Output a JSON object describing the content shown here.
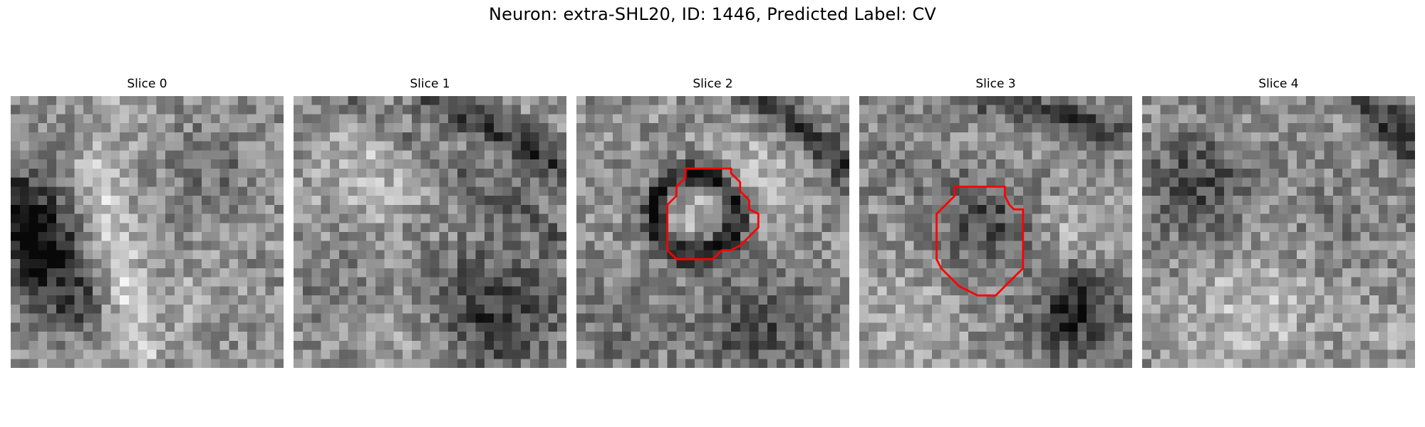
{
  "figure": {
    "title": "Neuron: extra-SHL20, ID: 1446, Predicted Label: CV"
  },
  "panels": [
    {
      "title": "Slice 0",
      "has_contour": false
    },
    {
      "title": "Slice 1",
      "has_contour": false
    },
    {
      "title": "Slice 2",
      "has_contour": true
    },
    {
      "title": "Slice 3",
      "has_contour": true
    },
    {
      "title": "Slice 4",
      "has_contour": false
    }
  ],
  "colors": {
    "contour": "#ff0000",
    "background": "#ffffff",
    "colormap": "gray"
  }
}
